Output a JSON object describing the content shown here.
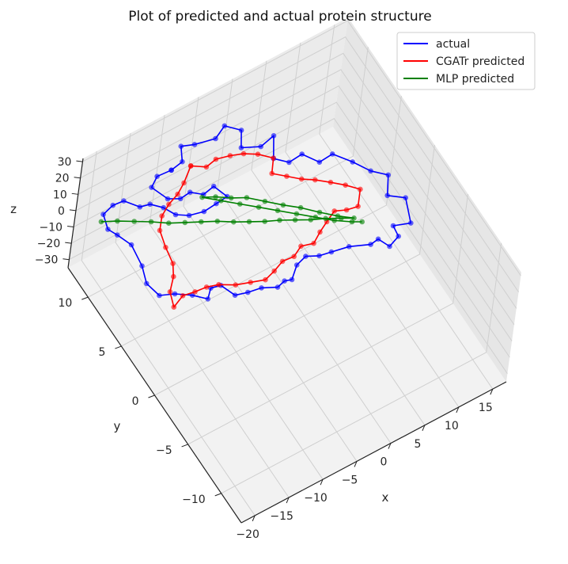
{
  "chart_data": {
    "type": "line",
    "projection": "3d",
    "title": "Plot of predicted and actual protein structure",
    "xlabel": "x",
    "ylabel": "y",
    "zlabel": "z",
    "xlim": [
      -22,
      17
    ],
    "ylim": [
      -13,
      13
    ],
    "zlim": [
      -35,
      32
    ],
    "x_ticks": [
      -20,
      -15,
      -10,
      -5,
      0,
      5,
      10,
      15
    ],
    "y_ticks": [
      -10,
      -5,
      0,
      5,
      10
    ],
    "z_ticks": [
      -30,
      -20,
      -10,
      0,
      10,
      20,
      30
    ],
    "x_tick_labels": [
      "−20",
      "−15",
      "−10",
      "−5",
      "0",
      "5",
      "10",
      "15"
    ],
    "y_tick_labels": [
      "−10",
      "−5",
      "0",
      "5",
      "10"
    ],
    "z_tick_labels": [
      "−30",
      "−20",
      "−10",
      "0",
      "10",
      "20",
      "30"
    ],
    "grid": true,
    "legend_position": "top-right",
    "series": [
      {
        "name": "actual",
        "color": "#0000ff",
        "marker": "o",
        "points": [
          [
            -9.0,
            12.0,
            2
          ],
          [
            -7.2,
            12.2,
            2
          ],
          [
            -6.2,
            13.4,
            2
          ],
          [
            -4.6,
            13.0,
            2
          ],
          [
            -1.9,
            12.6,
            2
          ],
          [
            0.0,
            13.2,
            2
          ],
          [
            1.5,
            12.2,
            2
          ],
          [
            0.2,
            10.9,
            2
          ],
          [
            2.4,
            10.2,
            2
          ],
          [
            4.6,
            10.5,
            2
          ],
          [
            2.9,
            8.8,
            2
          ],
          [
            4.3,
            7.9,
            2
          ],
          [
            6.3,
            8.0,
            2
          ],
          [
            7.6,
            6.7,
            2
          ],
          [
            9.6,
            6.8,
            2
          ],
          [
            11.2,
            5.4,
            2
          ],
          [
            12.5,
            4.0,
            2
          ],
          [
            14.1,
            3.0,
            2
          ],
          [
            12.5,
            1.5,
            2
          ],
          [
            14.3,
            0.6,
            2
          ],
          [
            13.0,
            -1.5,
            2
          ],
          [
            10.9,
            -1.0,
            2
          ],
          [
            10.7,
            -2.0,
            2
          ],
          [
            9.0,
            -2.4,
            2
          ],
          [
            8.3,
            -1.4,
            2
          ],
          [
            7.1,
            -1.5,
            2
          ],
          [
            4.6,
            -0.8,
            2
          ],
          [
            2.3,
            -0.5,
            2
          ],
          [
            0.7,
            -0.3,
            2
          ],
          [
            -0.8,
            0.2,
            2
          ],
          [
            -2.4,
            -0.1,
            2
          ],
          [
            -4.0,
            -1.0,
            2
          ],
          [
            -4.9,
            -0.8,
            2
          ],
          [
            -6.1,
            -1.0,
            2
          ],
          [
            -7.9,
            -0.4,
            2
          ],
          [
            -9.7,
            -0.2,
            2
          ],
          [
            -11.3,
            0.1,
            2
          ],
          [
            -12.1,
            1.4,
            2
          ],
          [
            -13.4,
            1.6,
            2
          ],
          [
            -14.5,
            0.9,
            2
          ],
          [
            -15.9,
            1.8,
            2
          ],
          [
            -17.7,
            2.6,
            2
          ],
          [
            -19.5,
            3.1,
            2
          ],
          [
            -20.0,
            4.5,
            2
          ],
          [
            -19.2,
            6.0,
            2
          ],
          [
            -18.8,
            8.0,
            2
          ],
          [
            -19.6,
            9.3,
            2
          ],
          [
            -20.2,
            10.1,
            2
          ],
          [
            -19.6,
            11.4,
            2
          ],
          [
            -17.9,
            11.7,
            2
          ],
          [
            -16.4,
            11.6,
            2
          ],
          [
            -15.1,
            10.5,
            2
          ],
          [
            -13.8,
            10.3,
            2
          ],
          [
            -12.6,
            9.5,
            2
          ],
          [
            -11.8,
            8.5,
            2
          ],
          [
            -10.4,
            7.9,
            2
          ],
          [
            -8.5,
            7.6,
            2
          ],
          [
            -6.6,
            7.7,
            2
          ],
          [
            -4.9,
            7.8,
            2
          ],
          [
            -5.6,
            9.1,
            2
          ],
          [
            -7.3,
            8.9,
            2
          ],
          [
            -8.6,
            9.6,
            2
          ],
          [
            -10.1,
            9.5,
            2
          ],
          [
            -11.5,
            10.0,
            2
          ],
          [
            -12.4,
            11.5,
            2
          ],
          [
            -11.0,
            12.1,
            2
          ],
          [
            -9.0,
            12.0,
            2
          ]
        ]
      },
      {
        "name": "CGATr predicted",
        "color": "#ff0000",
        "marker": "o",
        "points": [
          [
            -6.0,
            12.0,
            -2
          ],
          [
            -4.4,
            11.3,
            -2
          ],
          [
            -2.8,
            11.5,
            -2
          ],
          [
            -1.0,
            11.2,
            -2
          ],
          [
            0.6,
            10.8,
            -2
          ],
          [
            2.1,
            10.2,
            -2
          ],
          [
            3.5,
            9.3,
            -2
          ],
          [
            2.2,
            8.2,
            -2
          ],
          [
            3.6,
            7.4,
            -2
          ],
          [
            5.0,
            6.6,
            -2
          ],
          [
            6.4,
            6.0,
            -2
          ],
          [
            7.9,
            5.2,
            -2
          ],
          [
            9.3,
            4.4,
            -2
          ],
          [
            10.6,
            3.5,
            -2
          ],
          [
            9.1,
            2.3,
            -2
          ],
          [
            7.6,
            2.5,
            -2
          ],
          [
            6.2,
            2.9,
            -2
          ],
          [
            4.6,
            2.4,
            -2
          ],
          [
            3.1,
            1.9,
            -2
          ],
          [
            1.6,
            1.3,
            -2
          ],
          [
            0.0,
            1.6,
            -2
          ],
          [
            -1.5,
            1.1,
            -2
          ],
          [
            -3.1,
            1.2,
            -2
          ],
          [
            -4.7,
            0.8,
            -2
          ],
          [
            -6.3,
            0.5,
            -2
          ],
          [
            -8.1,
            0.9,
            -2
          ],
          [
            -9.9,
            1.3,
            -2
          ],
          [
            -11.7,
            2.0,
            -2
          ],
          [
            -13.2,
            2.3,
            -2
          ],
          [
            -14.8,
            2.4,
            -2
          ],
          [
            -16.4,
            2.6,
            -2
          ],
          [
            -18.2,
            2.1,
            -2
          ],
          [
            -17.5,
            3.4,
            -2
          ],
          [
            -16.0,
            4.4,
            -2
          ],
          [
            -15.1,
            5.4,
            -2
          ],
          [
            -14.7,
            6.9,
            -2
          ],
          [
            -14.1,
            8.4,
            -2
          ],
          [
            -12.8,
            9.4,
            -2
          ],
          [
            -11.2,
            10.0,
            -2
          ],
          [
            -9.5,
            10.4,
            -2
          ],
          [
            -8.0,
            11.0,
            -2
          ],
          [
            -6.0,
            12.0,
            -2
          ]
        ]
      },
      {
        "name": "MLP predicted",
        "color": "#008000",
        "marker": "o",
        "points": [
          [
            -20.8,
            10.6,
            5
          ],
          [
            -19.0,
            10.0,
            5
          ],
          [
            -17.2,
            9.3,
            5
          ],
          [
            -15.4,
            8.6,
            5
          ],
          [
            -13.6,
            7.8,
            5
          ],
          [
            -11.8,
            7.2,
            5
          ],
          [
            -10.0,
            6.6,
            5
          ],
          [
            -8.2,
            6.0,
            5
          ],
          [
            -6.5,
            5.3,
            5
          ],
          [
            -4.8,
            4.7,
            5
          ],
          [
            -3.1,
            4.1,
            5
          ],
          [
            -1.4,
            3.6,
            5
          ],
          [
            0.3,
            3.0,
            5
          ],
          [
            2.0,
            2.4,
            5
          ],
          [
            3.7,
            1.9,
            5
          ],
          [
            5.4,
            1.3,
            5
          ],
          [
            6.8,
            0.8,
            5
          ],
          [
            5.2,
            1.6,
            5
          ],
          [
            3.5,
            2.6,
            5
          ],
          [
            1.8,
            3.7,
            5
          ],
          [
            0.1,
            4.6,
            5
          ],
          [
            -1.6,
            5.6,
            5
          ],
          [
            -3.3,
            6.6,
            5
          ],
          [
            -5.0,
            7.2,
            5
          ],
          [
            -6.6,
            7.9,
            5
          ],
          [
            -8.1,
            8.4,
            5
          ],
          [
            -6.3,
            7.4,
            5
          ],
          [
            -4.5,
            6.4,
            5
          ],
          [
            -2.7,
            5.4,
            5
          ],
          [
            -0.9,
            4.4,
            5
          ],
          [
            0.9,
            3.4,
            5
          ],
          [
            2.7,
            2.4,
            5
          ],
          [
            4.5,
            1.4,
            5
          ],
          [
            6.3,
            0.6,
            5
          ],
          [
            7.4,
            0.2,
            5
          ]
        ]
      }
    ]
  }
}
